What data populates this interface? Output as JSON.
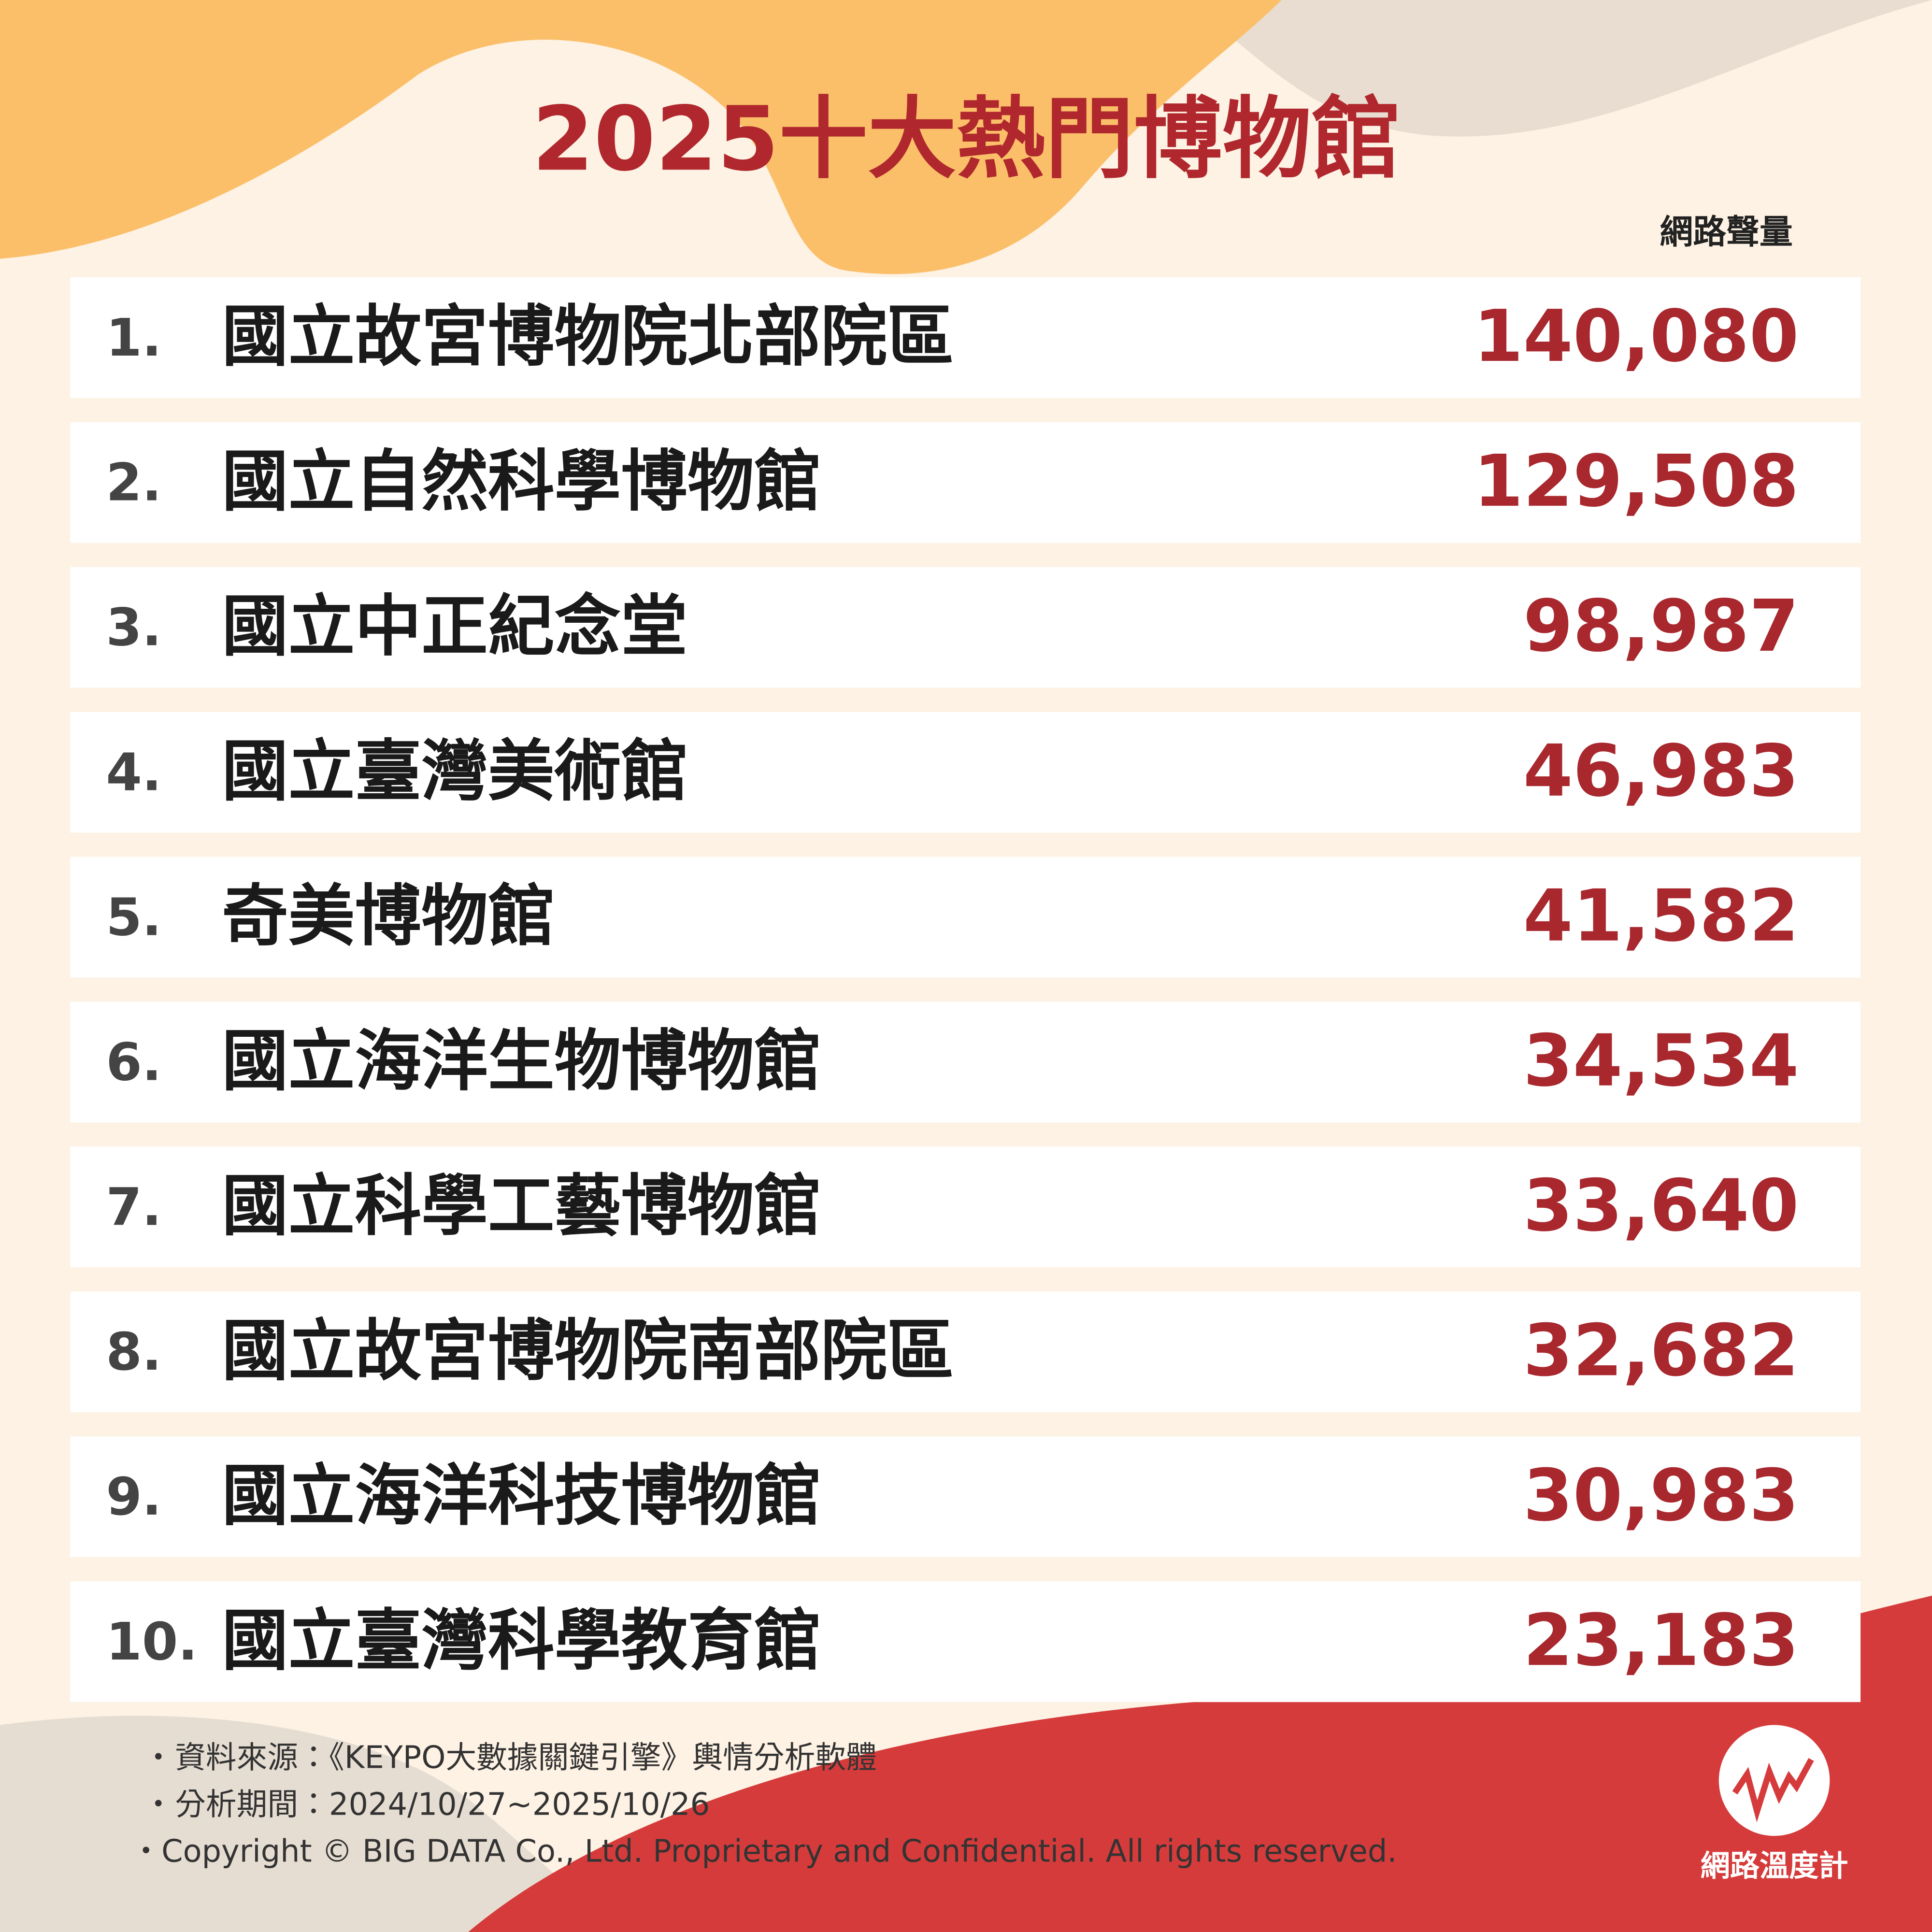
{
  "header": {
    "title": "2025十大熱門博物館",
    "column_label": "網路聲量"
  },
  "table": {
    "rows": [
      [
        "1.",
        "國立故宮博物院北部院區",
        "140,080"
      ],
      [
        "2.",
        "國立自然科學博物館",
        "129,508"
      ],
      [
        "3.",
        "國立中正紀念堂",
        "98,987"
      ],
      [
        "4.",
        "國立臺灣美術館",
        "46,983"
      ],
      [
        "5.",
        "奇美博物館",
        "41,582"
      ],
      [
        "6.",
        "國立海洋生物博物館",
        "34,534"
      ],
      [
        "7.",
        "國立科學工藝博物館",
        "33,640"
      ],
      [
        "8.",
        "國立故宮博物院南部院區",
        "32,682"
      ],
      [
        "9.",
        "國立海洋科技博物館",
        "30,983"
      ],
      [
        "10.",
        "國立臺灣科學教育館",
        "23,183"
      ]
    ]
  },
  "notes": [
    "資料來源：《KEYPO大數據關鍵引擎》輿情分析軟體",
    "分析期間：2024/10/27~2025/10/26",
    "・Copyright © BIG DATA Co., Ltd. Proprietary and Confidential. All rights reserved."
  ],
  "logo": {
    "label": "網路溫度計"
  }
}
